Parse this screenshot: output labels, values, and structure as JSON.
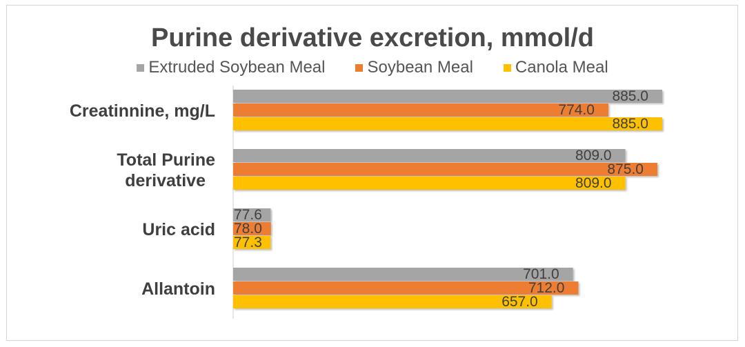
{
  "chart_data": {
    "type": "bar",
    "orientation": "horizontal",
    "title": "Purine derivative excretion, mmol/d",
    "categories": [
      "Creatinnine, mg/L",
      "Total Purine derivative",
      "Uric acid",
      "Allantoin"
    ],
    "series": [
      {
        "name": "Extruded Soybean Meal",
        "color": "#a5a5a5",
        "values": [
          885.0,
          809.0,
          77.6,
          701.0
        ]
      },
      {
        "name": "Soybean Meal",
        "color": "#ed7d31",
        "values": [
          774.0,
          875.0,
          78.0,
          712.0
        ]
      },
      {
        "name": "Canola Meal",
        "color": "#ffc000",
        "values": [
          885.0,
          809.0,
          77.3,
          657.0
        ]
      }
    ],
    "value_labels": [
      [
        "885.0",
        "809.0",
        "77.6",
        "701.0"
      ],
      [
        "774.0",
        "875.0",
        "78.0",
        "712.0"
      ],
      [
        "885.0",
        "809.0",
        "77.3",
        "657.0"
      ]
    ],
    "legend_position": "top",
    "grid": false
  }
}
